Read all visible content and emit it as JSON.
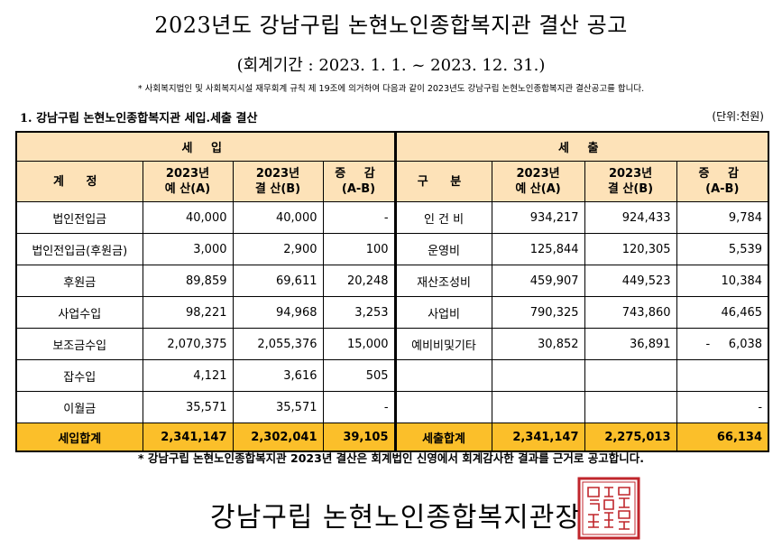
{
  "title": "2023년도 강남구립 논현노인종합복지관 결산 공고",
  "period": "(회계기간 : 2023. 1. 1. ~ 2023. 12. 31.)",
  "note": "* 사회복지법인 및 사회복지시설 재무회계 규칙 제 19조에 의거하여 다음과 같이 2023년도 강남구립 논현노인종합복지관 결산공고를 합니다.",
  "section_title": "1. 강남구립 논현노인종합복지관 세입.세출 결산",
  "unit": "(단위:천원)",
  "table": {
    "income_header": "세 입",
    "expense_header": "세 출",
    "col_account": "계 정",
    "col_category": "구 분",
    "col_budget_year": "2023년",
    "col_budget_sub": "예 산(A)",
    "col_settle_year": "2023년",
    "col_settle_sub": "결 산(B)",
    "col_diff": "증 감",
    "col_diff_sub": "(A-B)",
    "rows": [
      {
        "in_name": "법인전입금",
        "in_budget": "40,000",
        "in_settle": "40,000",
        "in_diff": "-",
        "ex_name": "인 건 비",
        "ex_budget": "934,217",
        "ex_settle": "924,433",
        "ex_diff": "9,784"
      },
      {
        "in_name": "법인전입금(후원금)",
        "in_budget": "3,000",
        "in_settle": "2,900",
        "in_diff": "100",
        "ex_name": "운영비",
        "ex_budget": "125,844",
        "ex_settle": "120,305",
        "ex_diff": "5,539"
      },
      {
        "in_name": "후원금",
        "in_budget": "89,859",
        "in_settle": "69,611",
        "in_diff": "20,248",
        "ex_name": "재산조성비",
        "ex_budget": "459,907",
        "ex_settle": "449,523",
        "ex_diff": "10,384"
      },
      {
        "in_name": "사업수입",
        "in_budget": "98,221",
        "in_settle": "94,968",
        "in_diff": "3,253",
        "ex_name": "사업비",
        "ex_budget": "790,325",
        "ex_settle": "743,860",
        "ex_diff": "46,465"
      },
      {
        "in_name": "보조금수입",
        "in_budget": "2,070,375",
        "in_settle": "2,055,376",
        "in_diff": "15,000",
        "ex_name": "예비비및기타",
        "ex_budget": "30,852",
        "ex_settle": "36,891",
        "ex_diff": "-     6,038"
      },
      {
        "in_name": "잡수입",
        "in_budget": "4,121",
        "in_settle": "3,616",
        "in_diff": "505",
        "ex_name": "",
        "ex_budget": "",
        "ex_settle": "",
        "ex_diff": ""
      },
      {
        "in_name": "이월금",
        "in_budget": "35,571",
        "in_settle": "35,571",
        "in_diff": "-",
        "ex_name": "",
        "ex_budget": "",
        "ex_settle": "",
        "ex_diff": "-"
      }
    ],
    "total": {
      "in_name": "세입합계",
      "in_budget": "2,341,147",
      "in_settle": "2,302,041",
      "in_diff": "39,105",
      "ex_name": "세출합계",
      "ex_budget": "2,341,147",
      "ex_settle": "2,275,013",
      "ex_diff": "66,134"
    }
  },
  "footnote": "* 강남구립 논현노인종합복지관 2023년 결산은 회계법인 신영에서 회계감사한 결과를 근거로 공고합니다.",
  "organization": "강남구립 논현노인종합복지관장",
  "seal_color": "#c0262c",
  "seal_text": "강남구립논현노인종합복지관장인",
  "colors": {
    "header_bg": "#fde2b8",
    "total_bg": "#fbbf2a"
  }
}
